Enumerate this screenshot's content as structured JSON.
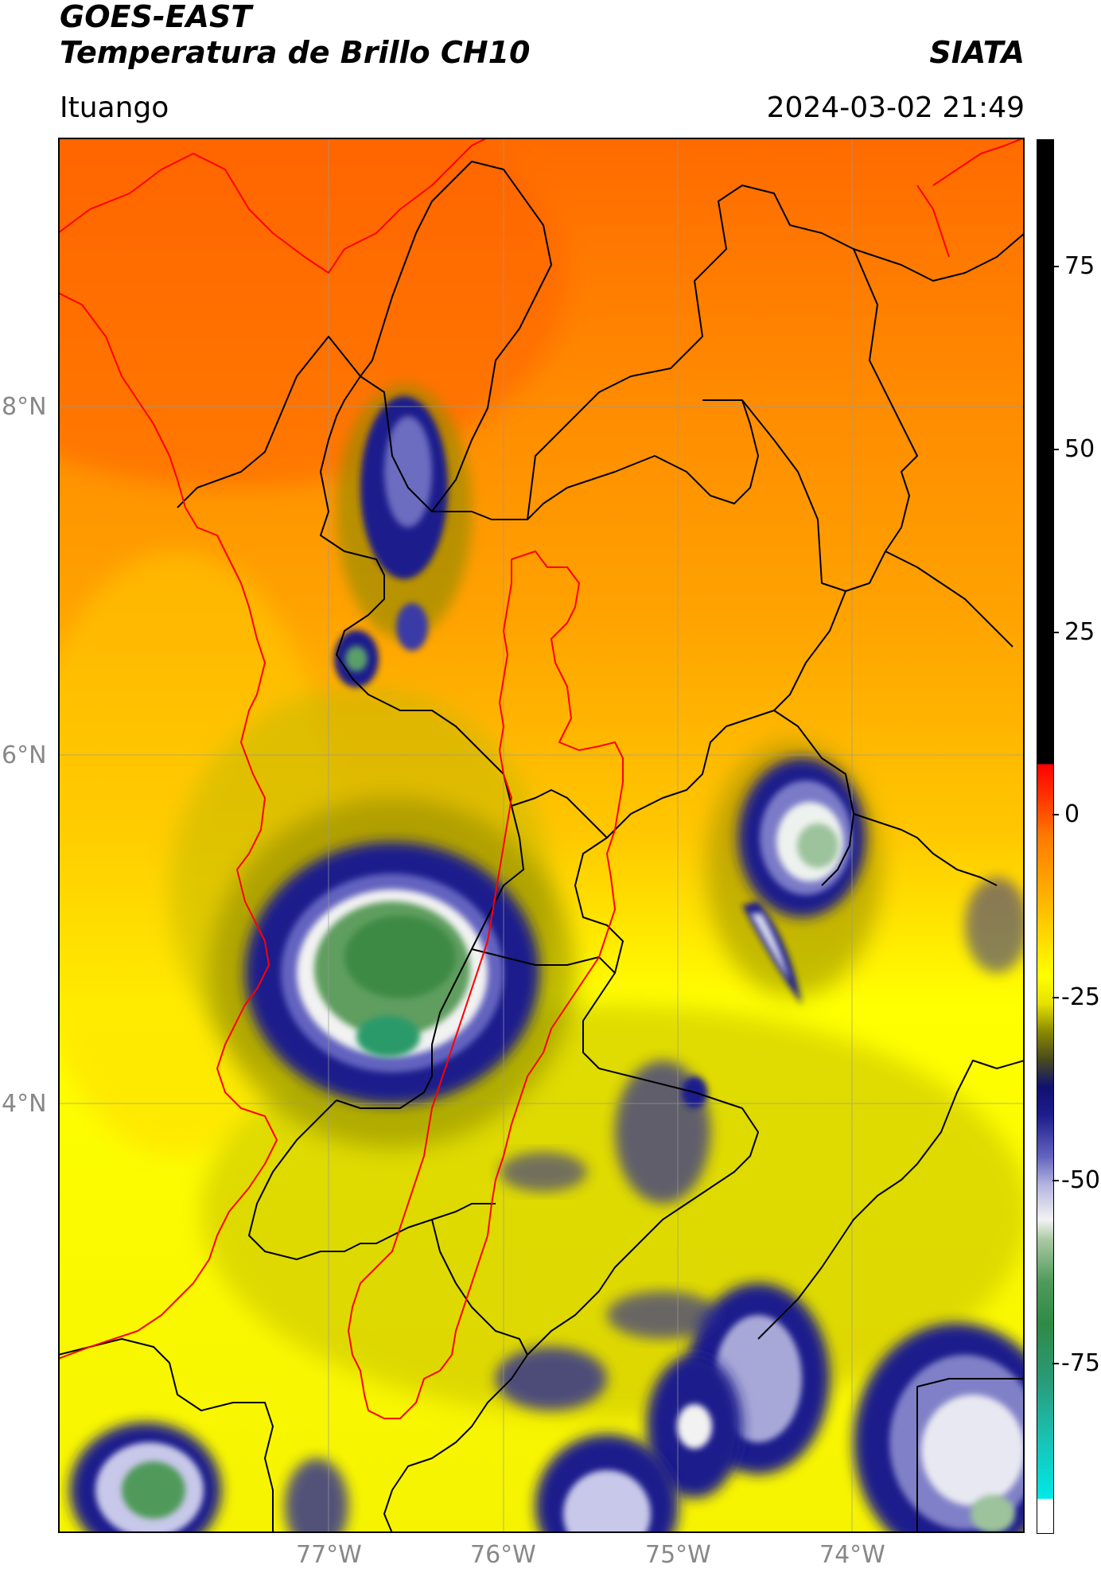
{
  "header": {
    "satellite": "GOES-EAST",
    "product": "Temperatura de Brillo CH10",
    "agency": "SIATA",
    "region": "Ituango",
    "datetime": "2024-03-02 21:49"
  },
  "map": {
    "lat_ticks": [
      "8°N",
      "6°N",
      "4°N"
    ],
    "lon_ticks": [
      "77°W",
      "76°W",
      "75°W",
      "74°W"
    ],
    "gridlines": true,
    "colors": {
      "warm": "#ff6a00",
      "mid": "#ffaa00",
      "yellow": "#ffff00",
      "cold_blue": "#1a1a80",
      "very_cold_white": "#f4f4f4",
      "coldest_green": "#2f8a46",
      "boundary_black": "#000000",
      "boundary_red": "#ff0000"
    }
  },
  "colorbar": {
    "tick_labels": [
      "75",
      "50",
      "25",
      "0",
      "-25",
      "-50",
      "-75"
    ],
    "tick_values": [
      75,
      50,
      25,
      0,
      -25,
      -50,
      -75
    ],
    "range": [
      -105,
      90
    ]
  }
}
